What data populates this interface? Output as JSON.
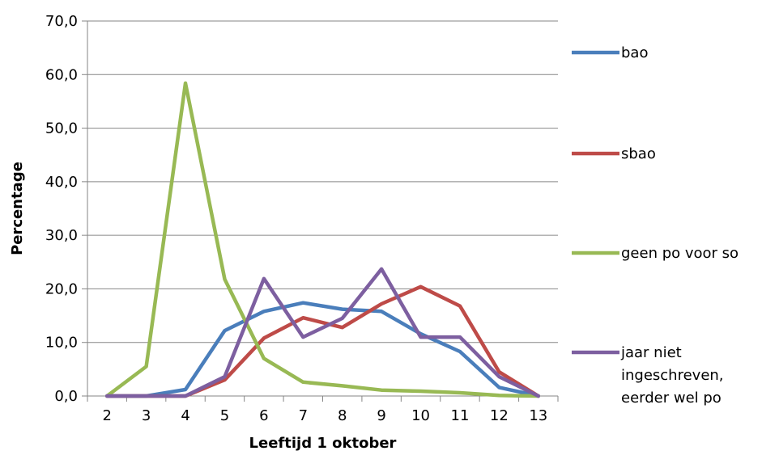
{
  "chart_data": {
    "type": "line",
    "xlabel": "Leeftijd 1 oktober",
    "ylabel": "Percentage",
    "x": [
      2,
      3,
      4,
      5,
      6,
      7,
      8,
      9,
      10,
      11,
      12,
      13
    ],
    "x_tick_labels": [
      "2",
      "3",
      "4",
      "5",
      "6",
      "7",
      "8",
      "9",
      "10",
      "11",
      "12",
      "13"
    ],
    "ylim": [
      0,
      70
    ],
    "y_tick_labels": [
      "0,0",
      "10,0",
      "20,0",
      "30,0",
      "40,0",
      "50,0",
      "60,0",
      "70,0"
    ],
    "grid": "horizontal",
    "legend_position": "right",
    "series": [
      {
        "name": "bao",
        "color": "#4a7ebb",
        "values": [
          0.0,
          0.0,
          1.2,
          12.2,
          15.8,
          17.4,
          16.2,
          15.8,
          11.6,
          8.3,
          1.6,
          0.0
        ]
      },
      {
        "name": "sbao",
        "color": "#be4b48",
        "values": [
          0.0,
          0.0,
          0.0,
          3.0,
          10.8,
          14.6,
          12.8,
          17.2,
          20.4,
          16.8,
          4.5,
          0.0
        ]
      },
      {
        "name": "geen po voor so",
        "color": "#98b954",
        "values": [
          0.0,
          5.5,
          58.4,
          21.8,
          7.0,
          2.6,
          1.9,
          1.1,
          0.9,
          0.6,
          0.1,
          0.0
        ]
      },
      {
        "name_lines": [
          "jaar niet",
          "ingeschreven,",
          "eerder wel po"
        ],
        "color": "#7d5fa0",
        "values": [
          0.0,
          0.0,
          0.0,
          3.6,
          21.9,
          11.0,
          14.5,
          23.7,
          11.0,
          11.0,
          3.6,
          0.0
        ]
      }
    ]
  }
}
